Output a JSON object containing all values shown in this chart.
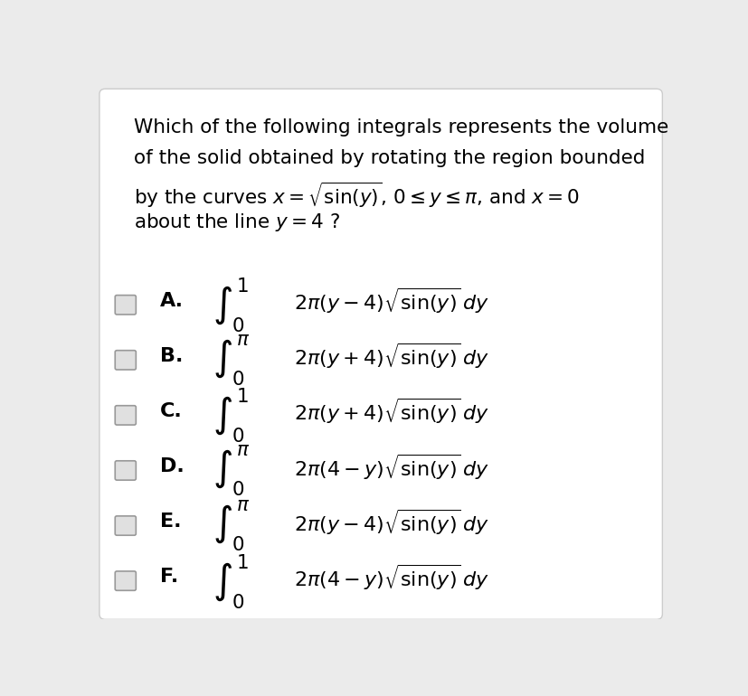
{
  "bg_color": "#ebebeb",
  "panel_color": "#ffffff",
  "title_lines": [
    "Which of the following integrals represents the volume",
    "of the solid obtained by rotating the region bounded",
    "by the curves $x = \\sqrt{\\sin(y)}$, $0 \\leq y \\leq \\pi$, and $x = 0$",
    "about the line $y = 4$ ?"
  ],
  "options": [
    {
      "label": "A.",
      "upper": "1",
      "lower": "0",
      "integrand": "$2\\pi(y - 4)\\sqrt{\\sin(y)}\\, dy$"
    },
    {
      "label": "B.",
      "upper": "\\pi",
      "lower": "0",
      "integrand": "$2\\pi(y + 4)\\sqrt{\\sin(y)}\\, dy$"
    },
    {
      "label": "C.",
      "upper": "1",
      "lower": "0",
      "integrand": "$2\\pi(y + 4)\\sqrt{\\sin(y)}\\, dy$"
    },
    {
      "label": "D.",
      "upper": "\\pi",
      "lower": "0",
      "integrand": "$2\\pi(4 - y)\\sqrt{\\sin(y)}\\, dy$"
    },
    {
      "label": "E.",
      "upper": "\\pi",
      "lower": "0",
      "integrand": "$2\\pi(y - 4)\\sqrt{\\sin(y)}\\, dy$"
    },
    {
      "label": "F.",
      "upper": "1",
      "lower": "0",
      "integrand": "$2\\pi(4 - y)\\sqrt{\\sin(y)}\\, dy$"
    }
  ],
  "title_fontsize": 15.5,
  "option_fontsize": 16,
  "label_fontsize": 16
}
